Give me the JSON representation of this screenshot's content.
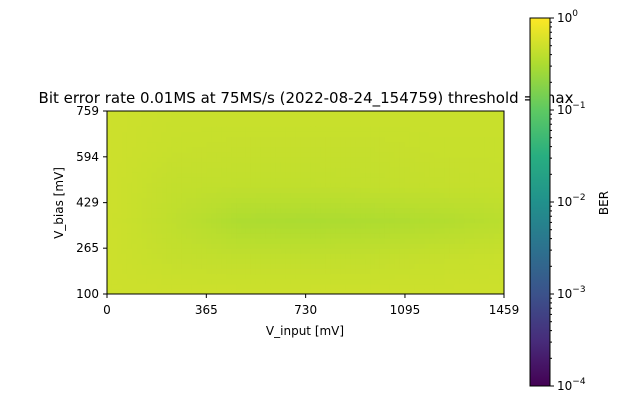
{
  "chart_data": [
    {
      "type": "heatmap",
      "title": "Bit error rate 0.01MS at 75MS/s (2022-08-24_154759) threshold = max",
      "xlabel": "V_input [mV]",
      "ylabel": "V_bias [mV]",
      "xlim": [
        0,
        1459
      ],
      "ylim": [
        100,
        759
      ],
      "x_ticks": [
        0,
        365,
        730,
        1095,
        1459
      ],
      "y_ticks": [
        100,
        265,
        429,
        594,
        759
      ],
      "x_tick_labels": [
        "0",
        "365",
        "730",
        "1095",
        "1459"
      ],
      "y_tick_labels": [
        "100",
        "265",
        "429",
        "594",
        "759"
      ],
      "x": [
        0,
        243,
        486,
        730,
        973,
        1216,
        1459
      ],
      "y": [
        100,
        232,
        364,
        496,
        627,
        759
      ],
      "values": [
        [
          0.5,
          0.5,
          0.5,
          0.5,
          0.5,
          0.5,
          0.5
        ],
        [
          0.5,
          0.44,
          0.42,
          0.42,
          0.43,
          0.45,
          0.47
        ],
        [
          0.5,
          0.41,
          0.32,
          0.31,
          0.32,
          0.34,
          0.38
        ],
        [
          0.5,
          0.43,
          0.42,
          0.42,
          0.43,
          0.44,
          0.45
        ],
        [
          0.5,
          0.46,
          0.45,
          0.45,
          0.45,
          0.46,
          0.46
        ],
        [
          0.5,
          0.47,
          0.47,
          0.47,
          0.47,
          0.47,
          0.47
        ]
      ],
      "colorbar": {
        "label": "BER",
        "scale": "log",
        "range": [
          0.0001,
          1
        ],
        "ticks": [
          {
            "base": "10",
            "exp": "0"
          },
          {
            "base": "10",
            "exp": "−1"
          },
          {
            "base": "10",
            "exp": "−2"
          },
          {
            "base": "10",
            "exp": "−3"
          },
          {
            "base": "10",
            "exp": "−4"
          }
        ],
        "colormap": "viridis"
      }
    }
  ]
}
